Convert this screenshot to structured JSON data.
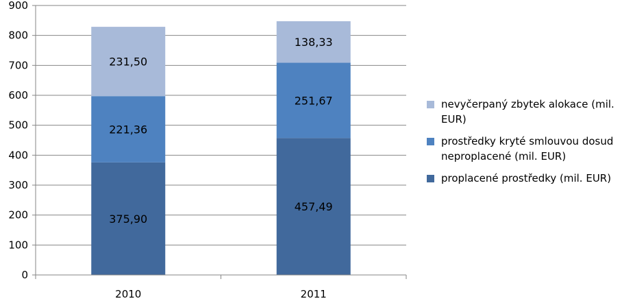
{
  "chart_data": {
    "type": "bar",
    "stacked": true,
    "categories": [
      "2010",
      "2011"
    ],
    "series": [
      {
        "name": "proplacené prostředky (mil. EUR)",
        "values": [
          375.9,
          457.49
        ],
        "labels": [
          "375,90",
          "457,49"
        ],
        "color": "#41699C"
      },
      {
        "name": "prostředky kryté smlouvou dosud neproplacené (mil. EUR)",
        "values": [
          221.36,
          251.67
        ],
        "labels": [
          "221,36",
          "251,67"
        ],
        "color": "#4E82C0"
      },
      {
        "name": "nevyčerpaný zbytek alokace (mil. EUR)",
        "values": [
          231.5,
          138.33
        ],
        "labels": [
          "231,50",
          "138,33"
        ],
        "color": "#A8BAD9"
      }
    ],
    "yticks": [
      "0",
      "100",
      "200",
      "300",
      "400",
      "500",
      "600",
      "700",
      "800",
      "900"
    ],
    "ylim": [
      0,
      900
    ],
    "grid": true,
    "legend_position": "right",
    "legend_order": [
      2,
      1,
      0
    ]
  }
}
